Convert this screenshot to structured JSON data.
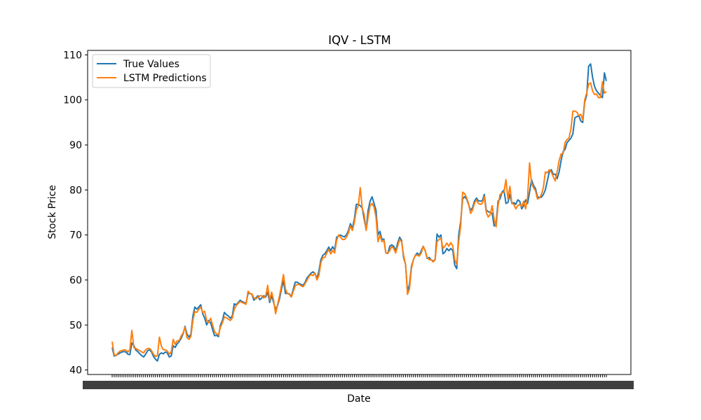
{
  "chart_data": {
    "type": "line",
    "title": "IQV - LSTM",
    "xlabel": "Date",
    "ylabel": "Stock Price",
    "ylim": [
      39,
      111
    ],
    "yticks": [
      40,
      50,
      60,
      70,
      80,
      90,
      100,
      110
    ],
    "grid": false,
    "legend_position": "top-left",
    "x_count": 252,
    "series": [
      {
        "name": "True Values",
        "color": "#1f77b4",
        "values": [
          45.0,
          43.1,
          43.3,
          43.5,
          43.8,
          44.0,
          44.1,
          44.0,
          43.5,
          43.4,
          46.0,
          45.5,
          44.4,
          44.1,
          43.6,
          43.2,
          42.9,
          43.5,
          44.3,
          44.5,
          44.0,
          43.0,
          42.4,
          42.0,
          43.5,
          43.8,
          43.6,
          44.0,
          43.8,
          42.9,
          43.1,
          45.4,
          45.0,
          45.8,
          46.3,
          47.0,
          48.0,
          49.7,
          48.0,
          47.3,
          48.0,
          52.0,
          54.0,
          53.5,
          54.0,
          54.5,
          52.5,
          51.5,
          50.0,
          51.0,
          50.5,
          49.0,
          47.6,
          47.7,
          47.4,
          50.0,
          51.0,
          52.8,
          52.3,
          52.0,
          51.5,
          52.0,
          54.7,
          54.5,
          55.0,
          55.5,
          55.2,
          55.0,
          54.8,
          57.0,
          57.0,
          56.8,
          55.5,
          56.0,
          56.5,
          55.6,
          56.0,
          56.5,
          56.2,
          57.3,
          55.0,
          56.5,
          55.0,
          53.5,
          54.3,
          55.8,
          58.0,
          59.8,
          57.0,
          57.0,
          56.9,
          56.3,
          58.0,
          59.5,
          59.5,
          59.2,
          59.0,
          58.8,
          59.5,
          60.5,
          61.0,
          61.5,
          61.8,
          61.5,
          60.3,
          62.0,
          64.5,
          65.5,
          65.8,
          66.5,
          67.3,
          66.5,
          67.4,
          66.6,
          69.5,
          69.8,
          70.0,
          69.7,
          69.6,
          70.0,
          71.0,
          72.5,
          71.5,
          73.5,
          76.8,
          76.8,
          76.5,
          76.0,
          73.5,
          71.2,
          75.5,
          77.5,
          78.5,
          77.0,
          75.5,
          70.0,
          70.8,
          69.0,
          69.1,
          66.0,
          65.9,
          67.5,
          67.8,
          67.5,
          66.5,
          68.2,
          69.5,
          68.8,
          65.0,
          63.5,
          57.5,
          59.0,
          63.0,
          64.5,
          65.5,
          66.0,
          65.5,
          66.5,
          67.5,
          66.5,
          64.8,
          65.0,
          64.5,
          64.2,
          64.5,
          70.2,
          69.5,
          70.0,
          65.8,
          66.2,
          67.0,
          66.5,
          67.0,
          66.5,
          63.3,
          62.5,
          70.0,
          73.0,
          78.0,
          78.5,
          78.0,
          76.8,
          75.5,
          76.0,
          77.5,
          78.2,
          77.6,
          77.5,
          77.6,
          79.0,
          75.5,
          75.2,
          75.0,
          74.8,
          72.0,
          72.5,
          77.5,
          78.0,
          79.5,
          80.0,
          77.0,
          77.2,
          79.0,
          77.0,
          77.2,
          76.8,
          77.8,
          77.5,
          75.8,
          76.5,
          77.8,
          77.0,
          79.5,
          82.3,
          81.0,
          80.3,
          78.5,
          78.3,
          78.4,
          79.0,
          80.0,
          82.0,
          84.0,
          84.5,
          83.5,
          83.5,
          82.5,
          84.0,
          86.5,
          88.5,
          89.0,
          90.5,
          91.0,
          91.5,
          92.5,
          96.0,
          96.3,
          96.5,
          95.3,
          95.0,
          99.5,
          101.0,
          107.5,
          108.0,
          105.0,
          103.0,
          102.0,
          101.5,
          101.0,
          100.5,
          106.0,
          104.2
        ]
      },
      {
        "name": "LSTM Predictions",
        "color": "#ff7f0e",
        "values": [
          46.3,
          43.4,
          43.2,
          43.8,
          44.2,
          44.3,
          44.5,
          44.4,
          44.0,
          44.5,
          48.8,
          45.0,
          44.8,
          44.5,
          44.3,
          44.0,
          43.8,
          44.5,
          44.8,
          44.8,
          44.3,
          43.5,
          43.0,
          43.2,
          47.3,
          45.3,
          44.5,
          44.5,
          44.2,
          43.5,
          44.0,
          46.8,
          45.7,
          46.5,
          46.5,
          47.5,
          48.2,
          49.5,
          47.2,
          46.8,
          47.5,
          51.0,
          53.0,
          52.8,
          53.5,
          54.0,
          52.8,
          53.0,
          51.0,
          50.5,
          51.5,
          50.0,
          48.5,
          48.0,
          47.8,
          49.5,
          50.5,
          51.8,
          51.6,
          51.3,
          51.0,
          51.5,
          53.5,
          54.3,
          54.8,
          55.2,
          55.0,
          54.8,
          54.6,
          57.5,
          57.0,
          56.9,
          56.0,
          55.8,
          56.2,
          56.5,
          56.5,
          56.0,
          56.5,
          58.8,
          55.5,
          57.3,
          55.5,
          52.5,
          54.5,
          56.5,
          58.8,
          61.2,
          58.0,
          57.0,
          56.8,
          56.2,
          57.5,
          58.7,
          59.0,
          59.0,
          58.7,
          58.5,
          59.2,
          60.0,
          60.8,
          61.2,
          61.0,
          61.5,
          60.0,
          61.0,
          63.8,
          65.0,
          65.0,
          66.0,
          66.8,
          65.8,
          66.5,
          66.0,
          68.8,
          70.0,
          69.5,
          69.0,
          69.0,
          69.5,
          70.5,
          72.0,
          71.0,
          72.8,
          75.5,
          76.5,
          80.5,
          76.0,
          74.5,
          71.0,
          74.0,
          76.5,
          77.0,
          76.2,
          74.0,
          68.5,
          70.0,
          68.5,
          68.8,
          66.0,
          66.0,
          66.5,
          67.5,
          67.0,
          66.0,
          67.5,
          69.0,
          68.5,
          65.5,
          63.5,
          56.8,
          58.0,
          62.5,
          64.5,
          65.5,
          65.5,
          65.3,
          66.0,
          67.5,
          66.5,
          65.0,
          64.5,
          64.5,
          64.0,
          64.5,
          68.5,
          69.0,
          69.3,
          67.0,
          67.5,
          68.2,
          67.5,
          68.3,
          67.5,
          64.5,
          63.5,
          68.5,
          72.0,
          79.5,
          79.2,
          78.3,
          77.0,
          74.8,
          75.5,
          77.0,
          77.8,
          77.0,
          76.8,
          77.0,
          78.5,
          75.0,
          74.0,
          74.5,
          76.5,
          73.5,
          71.8,
          76.5,
          79.0,
          79.3,
          79.5,
          82.3,
          78.0,
          80.8,
          77.0,
          76.8,
          75.8,
          76.5,
          76.8,
          76.3,
          77.5,
          75.8,
          78.5,
          86.0,
          81.5,
          80.5,
          79.8,
          78.0,
          78.2,
          79.0,
          80.5,
          84.0,
          83.8,
          84.5,
          84.0,
          83.0,
          82.0,
          84.0,
          86.5,
          88.0,
          88.0,
          90.5,
          91.2,
          91.5,
          93.5,
          97.5,
          97.5,
          97.3,
          96.5,
          96.8,
          95.5,
          100.0,
          101.5,
          103.5,
          103.8,
          102.0,
          101.2,
          101.3,
          100.5,
          100.5,
          104.0,
          101.5,
          101.8
        ]
      }
    ]
  }
}
